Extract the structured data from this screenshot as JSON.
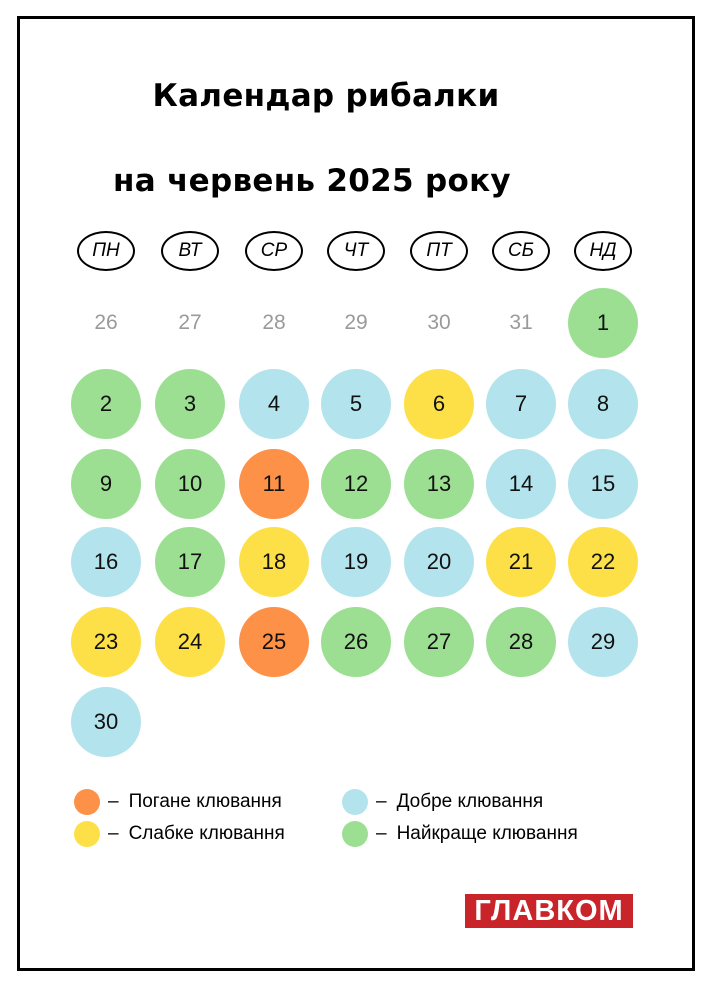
{
  "title_line1": "Календар рибалки",
  "title_line2": "на червень 2025 року",
  "weekdays": [
    "ПН",
    "ВТ",
    "СР",
    "ЧТ",
    "ПТ",
    "СБ",
    "НД"
  ],
  "prev_month_days": [
    "26",
    "27",
    "28",
    "29",
    "30",
    "31"
  ],
  "colors": {
    "bad": "#fd9147",
    "weak": "#fde047",
    "good": "#b3e3ec",
    "best": "#9cdf93"
  },
  "days": [
    {
      "day": "1",
      "rating": "best"
    },
    {
      "day": "2",
      "rating": "best"
    },
    {
      "day": "3",
      "rating": "best"
    },
    {
      "day": "4",
      "rating": "good"
    },
    {
      "day": "5",
      "rating": "good"
    },
    {
      "day": "6",
      "rating": "weak"
    },
    {
      "day": "7",
      "rating": "good"
    },
    {
      "day": "8",
      "rating": "good"
    },
    {
      "day": "9",
      "rating": "best"
    },
    {
      "day": "10",
      "rating": "best"
    },
    {
      "day": "11",
      "rating": "bad"
    },
    {
      "day": "12",
      "rating": "best"
    },
    {
      "day": "13",
      "rating": "best"
    },
    {
      "day": "14",
      "rating": "good"
    },
    {
      "day": "15",
      "rating": "good"
    },
    {
      "day": "16",
      "rating": "good"
    },
    {
      "day": "17",
      "rating": "best"
    },
    {
      "day": "18",
      "rating": "weak"
    },
    {
      "day": "19",
      "rating": "good"
    },
    {
      "day": "20",
      "rating": "good"
    },
    {
      "day": "21",
      "rating": "weak"
    },
    {
      "day": "22",
      "rating": "weak"
    },
    {
      "day": "23",
      "rating": "weak"
    },
    {
      "day": "24",
      "rating": "weak"
    },
    {
      "day": "25",
      "rating": "bad"
    },
    {
      "day": "26",
      "rating": "best"
    },
    {
      "day": "27",
      "rating": "best"
    },
    {
      "day": "28",
      "rating": "best"
    },
    {
      "day": "29",
      "rating": "good"
    },
    {
      "day": "30",
      "rating": "good"
    }
  ],
  "legend": {
    "bad": "Погане клювання",
    "weak": "Слабке клювання",
    "good": "Добре клювання",
    "best": "Найкраще клювання",
    "dash": "–"
  },
  "logo_text": "ГЛАВКОМ"
}
